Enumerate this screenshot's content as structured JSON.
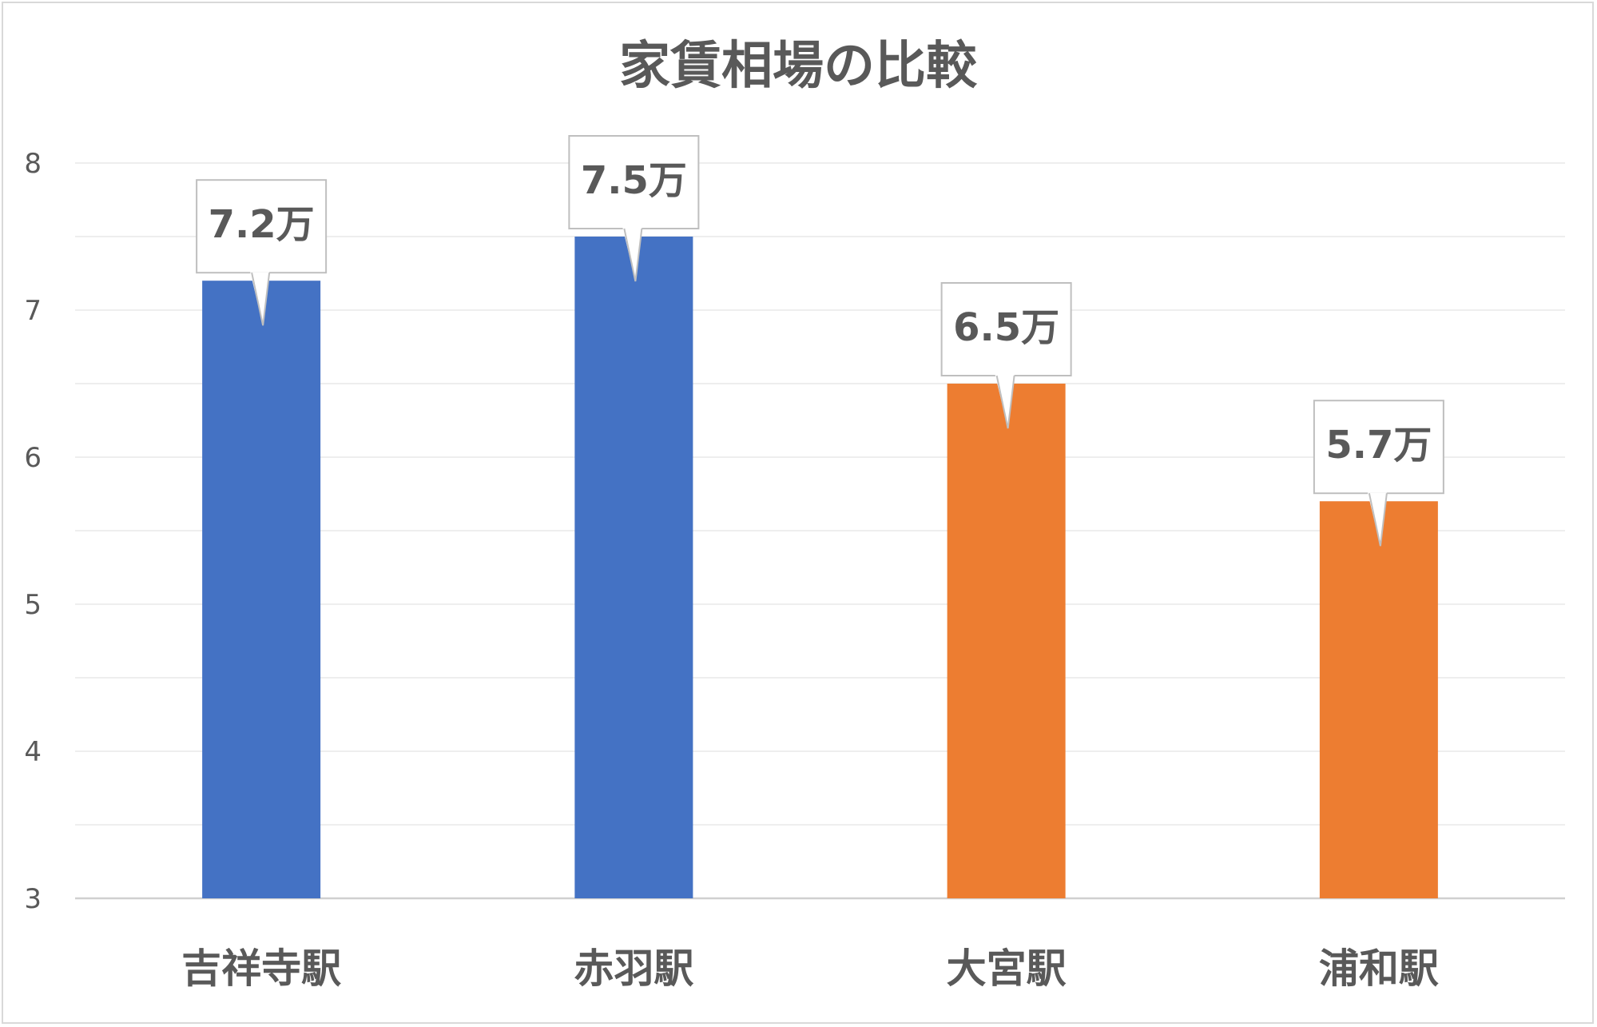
{
  "chart_data": {
    "type": "bar",
    "title": "家賃相場の比較",
    "categories": [
      "吉祥寺駅",
      "赤羽駅",
      "大宮駅",
      "浦和駅"
    ],
    "values": [
      7.2,
      7.5,
      6.5,
      5.7
    ],
    "data_labels": [
      "7.2万",
      "7.5万",
      "6.5万",
      "5.7万"
    ],
    "bar_colors": [
      "#4472C4",
      "#4472C4",
      "#ED7D31",
      "#ED7D31"
    ],
    "ylim": [
      3,
      8
    ],
    "y_ticks": [
      "3",
      "4",
      "5",
      "6",
      "7",
      "8"
    ],
    "y_tick_values": [
      3,
      4,
      5,
      6,
      7,
      8
    ],
    "minor_gridline_step": 0.5,
    "grid": true,
    "legend": "none",
    "xlabel": "",
    "ylabel": "",
    "colors": {
      "gridline": "#e8e8e8",
      "axis": "#d0d0d0",
      "text": "#595959",
      "callout_border": "#bfbfbf",
      "callout_fill": "#ffffff"
    }
  }
}
